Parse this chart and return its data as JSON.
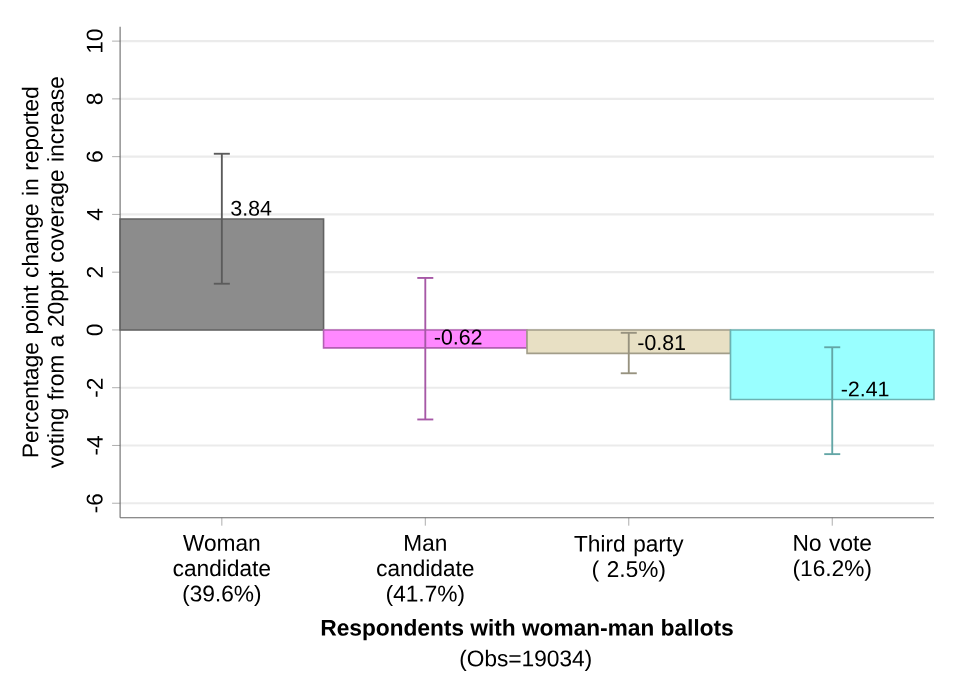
{
  "chart_data": {
    "type": "bar",
    "xlabel": "Respondents with woman-man ballots",
    "ylabel": "Percentage point change in reported voting from a 20ppt coverage increase",
    "annotations": [
      "(Obs=19034)"
    ],
    "categories": [
      "Woman candidate (39.6%)",
      "Man candidate (41.7%)",
      "Third party ( 2.5%)",
      "No vote (16.2%)"
    ],
    "values": [
      3.84,
      -0.62,
      -0.81,
      -2.41
    ],
    "value_labels": [
      "3.84",
      "-0.62",
      "-0.81",
      "-2.41"
    ],
    "errors": [
      [
        1.6,
        6.1
      ],
      [
        -3.1,
        1.8
      ],
      [
        -1.5,
        -0.1
      ],
      [
        -4.3,
        -0.6
      ]
    ],
    "colors": [
      "#8c8c8c",
      "#ff88ff",
      "#e8e0c4",
      "#99ffff"
    ],
    "ylim": [
      -6.5,
      10.5
    ],
    "yticks": [
      -6,
      -4,
      -2,
      0,
      2,
      4,
      6,
      8,
      10
    ],
    "grid": "y"
  }
}
